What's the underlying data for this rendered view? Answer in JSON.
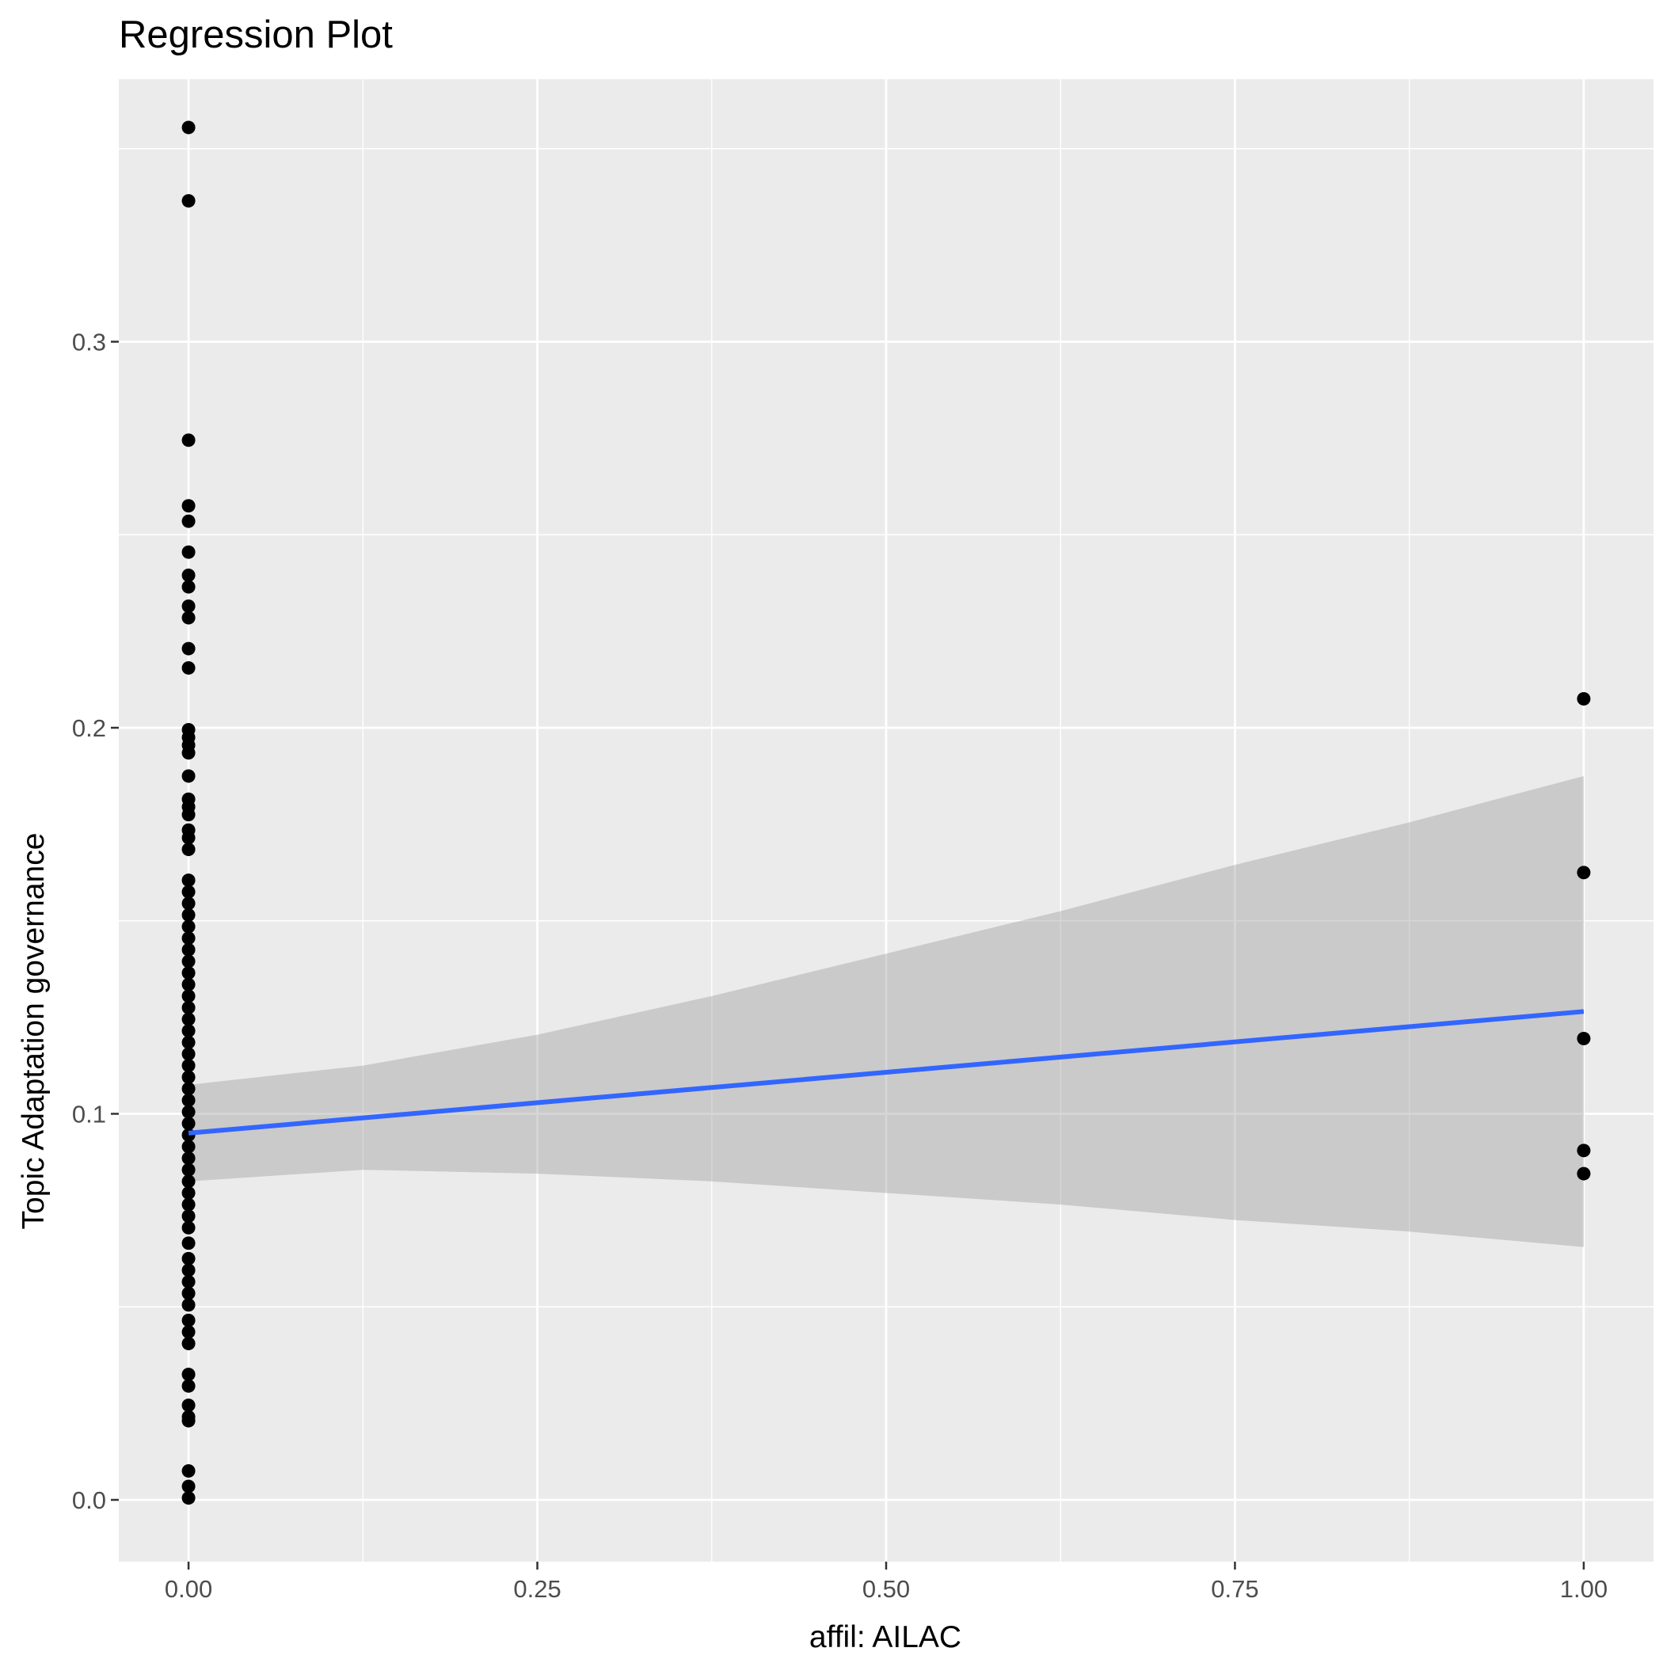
{
  "chart_data": {
    "type": "scatter",
    "title": "Regression Plot",
    "xlabel": "affil: AILAC",
    "ylabel": "Topic Adaptation governance",
    "xlim": [
      -0.05,
      1.05
    ],
    "ylim": [
      -0.016,
      0.368
    ],
    "x_ticks": [
      {
        "value": 0.0,
        "label": "0.00"
      },
      {
        "value": 0.25,
        "label": "0.25"
      },
      {
        "value": 0.5,
        "label": "0.50"
      },
      {
        "value": 0.75,
        "label": "0.75"
      },
      {
        "value": 1.0,
        "label": "1.00"
      }
    ],
    "y_ticks": [
      {
        "value": 0.0,
        "label": "0.0"
      },
      {
        "value": 0.1,
        "label": "0.1"
      },
      {
        "value": 0.2,
        "label": "0.2"
      },
      {
        "value": 0.3,
        "label": "0.3"
      }
    ],
    "grid": true,
    "background": "#ebebeb",
    "point_color": "#000000",
    "line_color": "#3366ff",
    "band_color": "#999999",
    "points": [
      {
        "x": 0,
        "y": 0.3555
      },
      {
        "x": 0,
        "y": 0.3365
      },
      {
        "x": 0,
        "y": 0.2745
      },
      {
        "x": 0,
        "y": 0.2575
      },
      {
        "x": 0,
        "y": 0.2535
      },
      {
        "x": 0,
        "y": 0.2455
      },
      {
        "x": 0,
        "y": 0.2395
      },
      {
        "x": 0,
        "y": 0.2365
      },
      {
        "x": 0,
        "y": 0.2315
      },
      {
        "x": 0,
        "y": 0.2285
      },
      {
        "x": 0,
        "y": 0.2205
      },
      {
        "x": 0,
        "y": 0.2155
      },
      {
        "x": 0,
        "y": 0.1995
      },
      {
        "x": 0,
        "y": 0.1975
      },
      {
        "x": 0,
        "y": 0.1955
      },
      {
        "x": 0,
        "y": 0.1935
      },
      {
        "x": 0,
        "y": 0.1875
      },
      {
        "x": 0,
        "y": 0.1815
      },
      {
        "x": 0,
        "y": 0.1795
      },
      {
        "x": 0,
        "y": 0.1775
      },
      {
        "x": 0,
        "y": 0.1735
      },
      {
        "x": 0,
        "y": 0.1715
      },
      {
        "x": 0,
        "y": 0.1685
      },
      {
        "x": 0,
        "y": 0.1605
      },
      {
        "x": 0,
        "y": 0.1575
      },
      {
        "x": 0,
        "y": 0.1545
      },
      {
        "x": 0,
        "y": 0.1515
      },
      {
        "x": 0,
        "y": 0.1485
      },
      {
        "x": 0,
        "y": 0.1455
      },
      {
        "x": 0,
        "y": 0.1425
      },
      {
        "x": 0,
        "y": 0.1395
      },
      {
        "x": 0,
        "y": 0.1365
      },
      {
        "x": 0,
        "y": 0.1335
      },
      {
        "x": 0,
        "y": 0.1305
      },
      {
        "x": 0,
        "y": 0.1275
      },
      {
        "x": 0,
        "y": 0.1245
      },
      {
        "x": 0,
        "y": 0.1215
      },
      {
        "x": 0,
        "y": 0.1185
      },
      {
        "x": 0,
        "y": 0.1155
      },
      {
        "x": 0,
        "y": 0.1125
      },
      {
        "x": 0,
        "y": 0.1095
      },
      {
        "x": 0,
        "y": 0.1065
      },
      {
        "x": 0,
        "y": 0.1035
      },
      {
        "x": 0,
        "y": 0.1005
      },
      {
        "x": 0,
        "y": 0.0975
      },
      {
        "x": 0,
        "y": 0.0945
      },
      {
        "x": 0,
        "y": 0.0915
      },
      {
        "x": 0,
        "y": 0.0885
      },
      {
        "x": 0,
        "y": 0.0855
      },
      {
        "x": 0,
        "y": 0.0825
      },
      {
        "x": 0,
        "y": 0.0795
      },
      {
        "x": 0,
        "y": 0.0765
      },
      {
        "x": 0,
        "y": 0.0735
      },
      {
        "x": 0,
        "y": 0.0705
      },
      {
        "x": 0,
        "y": 0.0665
      },
      {
        "x": 0,
        "y": 0.0625
      },
      {
        "x": 0,
        "y": 0.0595
      },
      {
        "x": 0,
        "y": 0.0565
      },
      {
        "x": 0,
        "y": 0.0535
      },
      {
        "x": 0,
        "y": 0.0505
      },
      {
        "x": 0,
        "y": 0.0465
      },
      {
        "x": 0,
        "y": 0.0435
      },
      {
        "x": 0,
        "y": 0.0405
      },
      {
        "x": 0,
        "y": 0.0325
      },
      {
        "x": 0,
        "y": 0.0295
      },
      {
        "x": 0,
        "y": 0.0245
      },
      {
        "x": 0,
        "y": 0.0215
      },
      {
        "x": 0,
        "y": 0.0205
      },
      {
        "x": 0,
        "y": 0.0075
      },
      {
        "x": 0,
        "y": 0.0035
      },
      {
        "x": 0,
        "y": 0.0005
      },
      {
        "x": 1,
        "y": 0.2075
      },
      {
        "x": 1,
        "y": 0.1625
      },
      {
        "x": 1,
        "y": 0.1195
      },
      {
        "x": 1,
        "y": 0.0905
      },
      {
        "x": 1,
        "y": 0.0845
      }
    ],
    "regression": {
      "x": [
        0,
        1
      ],
      "y": [
        0.095,
        0.1265
      ]
    },
    "confidence_band": {
      "x": [
        0,
        0.125,
        0.25,
        0.375,
        0.5,
        0.625,
        0.75,
        0.875,
        1.0
      ],
      "upper": [
        0.1075,
        0.1125,
        0.1205,
        0.1305,
        0.1415,
        0.1525,
        0.1645,
        0.1755,
        0.1875
      ],
      "lower": [
        0.0825,
        0.0855,
        0.0845,
        0.0825,
        0.0795,
        0.0765,
        0.0725,
        0.0695,
        0.0655
      ]
    }
  }
}
